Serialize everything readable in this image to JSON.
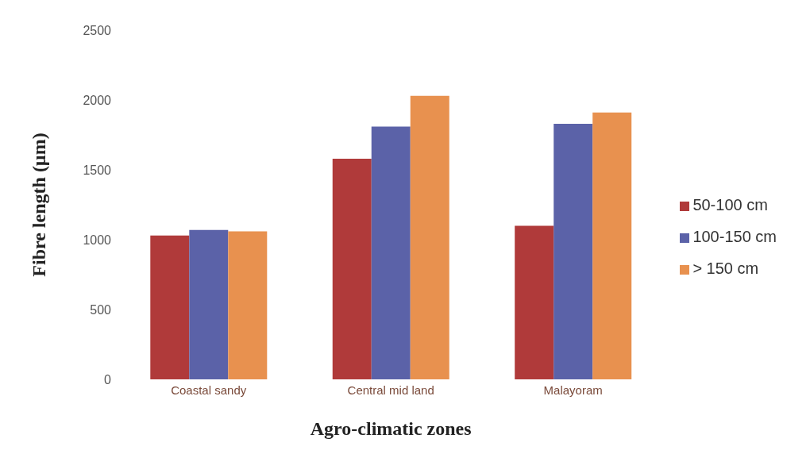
{
  "chart_data": {
    "type": "bar",
    "xlabel": "Agro-climatic zones",
    "ylabel": "Fibre length (µm)",
    "categories": [
      "Coastal sandy",
      "Central mid land",
      "Malayoram"
    ],
    "series": [
      {
        "name": "50-100 cm",
        "color": "#b03a3a",
        "values": [
          1030,
          1580,
          1100
        ]
      },
      {
        "name": "100-150 cm",
        "color": "#5b62a8",
        "values": [
          1070,
          1810,
          1830
        ]
      },
      {
        "name": "> 150 cm",
        "color": "#e8914f",
        "values": [
          1060,
          2030,
          1910
        ]
      }
    ],
    "ylim": [
      0,
      2500
    ],
    "yticks": [
      0,
      500,
      1000,
      1500,
      2000,
      2500
    ],
    "grid": false,
    "legend": "right"
  }
}
